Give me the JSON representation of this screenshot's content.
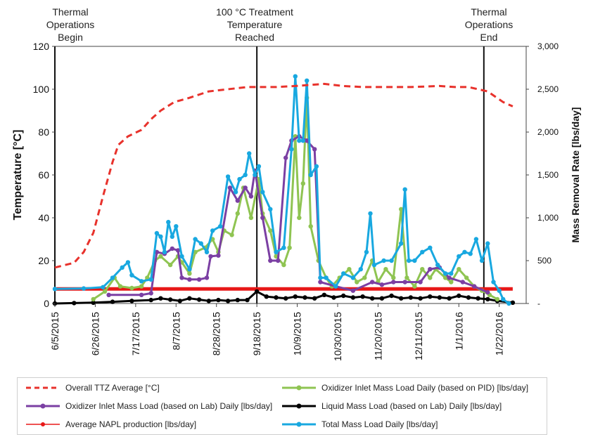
{
  "chart_data": {
    "type": "line",
    "title": "",
    "xlabel": "",
    "ylabel": "Temperature [°C]",
    "y2label": "Mass Removal Rate [lbs/day]",
    "ylim": [
      0,
      120
    ],
    "y2lim": [
      0,
      3000
    ],
    "y_ticks": [
      "0",
      "20",
      "40",
      "60",
      "80",
      "100",
      "120"
    ],
    "y2_ticks": [
      "-",
      "500",
      "1,000",
      "1,500",
      "2,000",
      "2,500",
      "3,000"
    ],
    "x_tick_labels": [
      "6/5/2015",
      "6/26/2015",
      "7/17/2015",
      "8/7/2015",
      "8/28/2015",
      "9/18/2015",
      "10/9/2015",
      "10/30/2015",
      "11/20/2015",
      "12/11/2015",
      "1/1/2016",
      "1/22/2016"
    ],
    "x_day_range": [
      0,
      245
    ],
    "grid": false,
    "legend_position": "bottom",
    "annotations": [
      {
        "day": 0,
        "lines": [
          "Thermal",
          "Operations",
          "Begin"
        ]
      },
      {
        "day": 105,
        "lines": [
          "100 °C Treatment",
          "Temperature",
          "Reached"
        ]
      },
      {
        "day": 223,
        "lines": [
          "Thermal",
          "Operations",
          "End"
        ]
      }
    ],
    "series": [
      {
        "name": "Overall TTZ Average [°C]",
        "axis": "left",
        "color": "#e8322c",
        "style": "dashed",
        "points": [
          [
            0,
            16.8
          ],
          [
            10,
            19
          ],
          [
            15,
            24
          ],
          [
            20,
            33
          ],
          [
            25,
            50
          ],
          [
            30,
            66
          ],
          [
            33,
            74
          ],
          [
            38,
            78
          ],
          [
            45,
            81
          ],
          [
            50,
            86
          ],
          [
            55,
            90
          ],
          [
            62,
            94
          ],
          [
            70,
            96
          ],
          [
            80,
            99
          ],
          [
            90,
            100
          ],
          [
            100,
            101
          ],
          [
            115,
            101
          ],
          [
            125,
            101.5
          ],
          [
            140,
            102.5
          ],
          [
            150,
            101.5
          ],
          [
            160,
            101
          ],
          [
            175,
            101
          ],
          [
            185,
            101
          ],
          [
            200,
            101.5
          ],
          [
            208,
            101
          ],
          [
            215,
            101
          ],
          [
            225,
            99
          ],
          [
            233,
            94
          ],
          [
            238,
            92
          ]
        ]
      },
      {
        "name": "Oxidizer Inlet Mass Load Daily (based on PID) [lbs/day]",
        "axis": "right",
        "color": "#8fc452",
        "style": "solid",
        "points": [
          [
            20,
            50
          ],
          [
            26,
            140
          ],
          [
            31,
            300
          ],
          [
            34,
            200
          ],
          [
            40,
            180
          ],
          [
            45,
            200
          ],
          [
            48,
            300
          ],
          [
            52,
            500
          ],
          [
            55,
            550
          ],
          [
            60,
            450
          ],
          [
            64,
            550
          ],
          [
            66,
            480
          ],
          [
            70,
            350
          ],
          [
            73,
            600
          ],
          [
            78,
            650
          ],
          [
            82,
            750
          ],
          [
            85,
            600
          ],
          [
            88,
            850
          ],
          [
            92,
            800
          ],
          [
            95,
            1050
          ],
          [
            98,
            1350
          ],
          [
            102,
            1000
          ],
          [
            106,
            1450
          ],
          [
            108,
            1050
          ],
          [
            112,
            850
          ],
          [
            115,
            550
          ],
          [
            119,
            450
          ],
          [
            122,
            650
          ],
          [
            125,
            1950
          ],
          [
            127,
            1000
          ],
          [
            129,
            1400
          ],
          [
            131,
            2400
          ],
          [
            133,
            900
          ],
          [
            137,
            500
          ],
          [
            141,
            300
          ],
          [
            144,
            200
          ],
          [
            148,
            300
          ],
          [
            153,
            400
          ],
          [
            157,
            250
          ],
          [
            161,
            300
          ],
          [
            165,
            500
          ],
          [
            168,
            250
          ],
          [
            172,
            400
          ],
          [
            176,
            300
          ],
          [
            180,
            1100
          ],
          [
            183,
            300
          ],
          [
            187,
            200
          ],
          [
            191,
            400
          ],
          [
            195,
            300
          ],
          [
            198,
            400
          ],
          [
            203,
            300
          ],
          [
            206,
            250
          ],
          [
            210,
            400
          ],
          [
            214,
            300
          ],
          [
            218,
            200
          ],
          [
            222,
            150
          ],
          [
            226,
            100
          ],
          [
            230,
            50
          ]
        ]
      },
      {
        "name": "Oxidizer Inlet Mass Load (based on Lab)  Daily [lbs/day]",
        "axis": "right",
        "color": "#7b3fa3",
        "style": "solid",
        "points": [
          [
            28,
            100
          ],
          [
            45,
            100
          ],
          [
            50,
            120
          ],
          [
            53,
            600
          ],
          [
            57,
            580
          ],
          [
            61,
            640
          ],
          [
            64,
            620
          ],
          [
            66,
            300
          ],
          [
            70,
            280
          ],
          [
            75,
            280
          ],
          [
            79,
            300
          ],
          [
            81,
            550
          ],
          [
            85,
            560
          ],
          [
            91,
            1350
          ],
          [
            95,
            1200
          ],
          [
            99,
            1350
          ],
          [
            102,
            1250
          ],
          [
            104,
            1550
          ],
          [
            108,
            1000
          ],
          [
            112,
            500
          ],
          [
            116,
            500
          ],
          [
            120,
            1700
          ],
          [
            123,
            1900
          ],
          [
            127,
            1950
          ],
          [
            131,
            1900
          ],
          [
            135,
            1800
          ],
          [
            138,
            250
          ],
          [
            146,
            200
          ],
          [
            155,
            150
          ],
          [
            165,
            250
          ],
          [
            170,
            220
          ],
          [
            176,
            250
          ],
          [
            182,
            250
          ],
          [
            190,
            250
          ],
          [
            195,
            400
          ],
          [
            200,
            420
          ],
          [
            205,
            300
          ],
          [
            212,
            250
          ],
          [
            218,
            200
          ],
          [
            225,
            130
          ]
        ]
      },
      {
        "name": "Liquid Mass Load (based on Lab) Daily [lbs/day]",
        "axis": "right",
        "color": "#000000",
        "style": "solid",
        "points": [
          [
            0,
            0
          ],
          [
            10,
            5
          ],
          [
            20,
            10
          ],
          [
            30,
            20
          ],
          [
            40,
            30
          ],
          [
            50,
            40
          ],
          [
            55,
            60
          ],
          [
            60,
            45
          ],
          [
            65,
            30
          ],
          [
            70,
            60
          ],
          [
            75,
            45
          ],
          [
            80,
            30
          ],
          [
            85,
            40
          ],
          [
            90,
            30
          ],
          [
            95,
            40
          ],
          [
            100,
            40
          ],
          [
            105,
            140
          ],
          [
            110,
            80
          ],
          [
            115,
            70
          ],
          [
            120,
            60
          ],
          [
            125,
            80
          ],
          [
            130,
            70
          ],
          [
            135,
            60
          ],
          [
            140,
            100
          ],
          [
            145,
            70
          ],
          [
            150,
            90
          ],
          [
            155,
            70
          ],
          [
            160,
            80
          ],
          [
            165,
            60
          ],
          [
            170,
            60
          ],
          [
            175,
            90
          ],
          [
            180,
            60
          ],
          [
            185,
            70
          ],
          [
            190,
            60
          ],
          [
            195,
            80
          ],
          [
            200,
            70
          ],
          [
            205,
            60
          ],
          [
            210,
            90
          ],
          [
            215,
            70
          ],
          [
            220,
            60
          ],
          [
            225,
            50
          ],
          [
            230,
            30
          ],
          [
            238,
            10
          ]
        ]
      },
      {
        "name": "Average NAPL production [lbs/day]",
        "axis": "right",
        "color": "#e81818",
        "style": "thick",
        "points": [
          [
            0,
            170
          ],
          [
            238,
            170
          ]
        ]
      },
      {
        "name": "Total Mass Load Daily  [lbs/day]",
        "axis": "right",
        "color": "#18a8e0",
        "style": "solid",
        "points": [
          [
            0,
            170
          ],
          [
            15,
            175
          ],
          [
            25,
            190
          ],
          [
            30,
            300
          ],
          [
            35,
            420
          ],
          [
            38,
            480
          ],
          [
            40,
            330
          ],
          [
            45,
            260
          ],
          [
            50,
            280
          ],
          [
            53,
            820
          ],
          [
            55,
            780
          ],
          [
            57,
            600
          ],
          [
            59,
            950
          ],
          [
            61,
            780
          ],
          [
            63,
            900
          ],
          [
            66,
            550
          ],
          [
            70,
            400
          ],
          [
            73,
            750
          ],
          [
            76,
            700
          ],
          [
            79,
            600
          ],
          [
            82,
            850
          ],
          [
            86,
            900
          ],
          [
            90,
            1480
          ],
          [
            94,
            1300
          ],
          [
            96,
            1450
          ],
          [
            99,
            1500
          ],
          [
            101,
            1750
          ],
          [
            104,
            1500
          ],
          [
            106,
            1600
          ],
          [
            108,
            1300
          ],
          [
            112,
            1100
          ],
          [
            115,
            600
          ],
          [
            119,
            650
          ],
          [
            123,
            1800
          ],
          [
            125,
            2650
          ],
          [
            127,
            1900
          ],
          [
            129,
            1900
          ],
          [
            131,
            2600
          ],
          [
            133,
            1500
          ],
          [
            136,
            1600
          ],
          [
            138,
            300
          ],
          [
            141,
            300
          ],
          [
            146,
            200
          ],
          [
            150,
            350
          ],
          [
            155,
            300
          ],
          [
            159,
            400
          ],
          [
            162,
            600
          ],
          [
            164,
            1050
          ],
          [
            166,
            450
          ],
          [
            171,
            500
          ],
          [
            175,
            500
          ],
          [
            180,
            700
          ],
          [
            182,
            1330
          ],
          [
            184,
            500
          ],
          [
            187,
            500
          ],
          [
            191,
            600
          ],
          [
            195,
            650
          ],
          [
            199,
            450
          ],
          [
            203,
            350
          ],
          [
            206,
            350
          ],
          [
            210,
            550
          ],
          [
            213,
            600
          ],
          [
            216,
            580
          ],
          [
            219,
            750
          ],
          [
            222,
            500
          ],
          [
            225,
            700
          ],
          [
            228,
            250
          ],
          [
            231,
            150
          ],
          [
            233,
            50
          ],
          [
            236,
            0
          ]
        ]
      }
    ]
  },
  "legend": {
    "items": [
      {
        "label": "Overall TTZ Average [°C]"
      },
      {
        "label": "Oxidizer Inlet Mass Load Daily (based on PID) [lbs/day]"
      },
      {
        "label": "Oxidizer Inlet Mass Load (based on Lab)  Daily [lbs/day]"
      },
      {
        "label": "Liquid Mass Load (based on Lab) Daily [lbs/day]"
      },
      {
        "label": "Average NAPL production [lbs/day]"
      },
      {
        "label": "Total Mass Load Daily  [lbs/day]"
      }
    ]
  }
}
